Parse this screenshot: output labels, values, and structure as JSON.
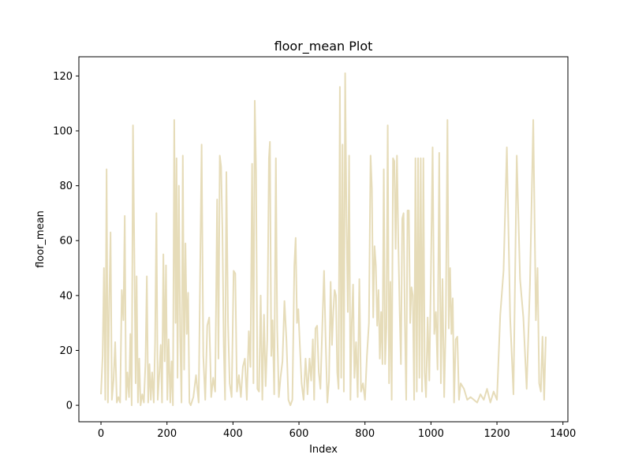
{
  "chart_data": {
    "type": "line",
    "title": "floor_mean Plot",
    "xlabel": "Index",
    "ylabel": "floor_mean",
    "xlim": [
      -67,
      1415
    ],
    "ylim": [
      -6,
      127
    ],
    "xticks": [
      0,
      200,
      400,
      600,
      800,
      1000,
      1200,
      1400
    ],
    "yticks": [
      0,
      20,
      40,
      60,
      80,
      100,
      120
    ],
    "grid": false,
    "legend": "none",
    "series": [
      {
        "color": "#e6dcb9",
        "points": [
          [
            0,
            4
          ],
          [
            5,
            18
          ],
          [
            9,
            50
          ],
          [
            13,
            2
          ],
          [
            17,
            86
          ],
          [
            21,
            1
          ],
          [
            25,
            38
          ],
          [
            29,
            63
          ],
          [
            33,
            2
          ],
          [
            38,
            9
          ],
          [
            43,
            23
          ],
          [
            48,
            1
          ],
          [
            53,
            3
          ],
          [
            58,
            1
          ],
          [
            63,
            42
          ],
          [
            68,
            31
          ],
          [
            72,
            69
          ],
          [
            76,
            2
          ],
          [
            80,
            12
          ],
          [
            85,
            3
          ],
          [
            89,
            26
          ],
          [
            93,
            0
          ],
          [
            97,
            102
          ],
          [
            101,
            56
          ],
          [
            105,
            8
          ],
          [
            108,
            47
          ],
          [
            112,
            1
          ],
          [
            116,
            17
          ],
          [
            120,
            0
          ],
          [
            125,
            4
          ],
          [
            130,
            1
          ],
          [
            135,
            16
          ],
          [
            139,
            47
          ],
          [
            143,
            1
          ],
          [
            147,
            15
          ],
          [
            151,
            2
          ],
          [
            155,
            12
          ],
          [
            160,
            1
          ],
          [
            164,
            23
          ],
          [
            168,
            70
          ],
          [
            172,
            2
          ],
          [
            177,
            12
          ],
          [
            181,
            22
          ],
          [
            185,
            1
          ],
          [
            189,
            55
          ],
          [
            193,
            16
          ],
          [
            197,
            51
          ],
          [
            201,
            2
          ],
          [
            205,
            24
          ],
          [
            210,
            1
          ],
          [
            214,
            16
          ],
          [
            218,
            0
          ],
          [
            222,
            104
          ],
          [
            226,
            30
          ],
          [
            229,
            90
          ],
          [
            232,
            10
          ],
          [
            236,
            80
          ],
          [
            240,
            25
          ],
          [
            244,
            1
          ],
          [
            248,
            91
          ],
          [
            252,
            13
          ],
          [
            256,
            59
          ],
          [
            260,
            26
          ],
          [
            264,
            41
          ],
          [
            268,
            1
          ],
          [
            272,
            0
          ],
          [
            280,
            3
          ],
          [
            288,
            11
          ],
          [
            296,
            1
          ],
          [
            305,
            95
          ],
          [
            310,
            18
          ],
          [
            316,
            2
          ],
          [
            322,
            29
          ],
          [
            328,
            32
          ],
          [
            334,
            3
          ],
          [
            340,
            10
          ],
          [
            346,
            5
          ],
          [
            352,
            75
          ],
          [
            356,
            17
          ],
          [
            360,
            91
          ],
          [
            364,
            87
          ],
          [
            368,
            64
          ],
          [
            372,
            22
          ],
          [
            376,
            2
          ],
          [
            380,
            85
          ],
          [
            385,
            30
          ],
          [
            390,
            8
          ],
          [
            396,
            3
          ],
          [
            402,
            49
          ],
          [
            407,
            48
          ],
          [
            412,
            5
          ],
          [
            418,
            11
          ],
          [
            424,
            3
          ],
          [
            430,
            14
          ],
          [
            436,
            17
          ],
          [
            442,
            2
          ],
          [
            448,
            27
          ],
          [
            453,
            14
          ],
          [
            458,
            88
          ],
          [
            462,
            8
          ],
          [
            466,
            111
          ],
          [
            470,
            85
          ],
          [
            474,
            6
          ],
          [
            479,
            5
          ],
          [
            484,
            40
          ],
          [
            489,
            2
          ],
          [
            494,
            33
          ],
          [
            499,
            7
          ],
          [
            504,
            24
          ],
          [
            509,
            90
          ],
          [
            512,
            96
          ],
          [
            516,
            18
          ],
          [
            520,
            31
          ],
          [
            525,
            4
          ],
          [
            530,
            90
          ],
          [
            534,
            28
          ],
          [
            539,
            3
          ],
          [
            544,
            10
          ],
          [
            550,
            16
          ],
          [
            556,
            38
          ],
          [
            562,
            24
          ],
          [
            568,
            2
          ],
          [
            574,
            0
          ],
          [
            580,
            2
          ],
          [
            586,
            51
          ],
          [
            590,
            61
          ],
          [
            594,
            30
          ],
          [
            598,
            35
          ],
          [
            603,
            21
          ],
          [
            608,
            8
          ],
          [
            614,
            2
          ],
          [
            620,
            17
          ],
          [
            626,
            4
          ],
          [
            632,
            17
          ],
          [
            637,
            9
          ],
          [
            642,
            24
          ],
          [
            646,
            2
          ],
          [
            650,
            28
          ],
          [
            655,
            29
          ],
          [
            660,
            12
          ],
          [
            665,
            6
          ],
          [
            670,
            26
          ],
          [
            676,
            49
          ],
          [
            681,
            23
          ],
          [
            686,
            1
          ],
          [
            691,
            9
          ],
          [
            696,
            45
          ],
          [
            700,
            22
          ],
          [
            704,
            34
          ],
          [
            708,
            42
          ],
          [
            712,
            40
          ],
          [
            716,
            12
          ],
          [
            720,
            6
          ],
          [
            724,
            116
          ],
          [
            728,
            10
          ],
          [
            732,
            95
          ],
          [
            736,
            5
          ],
          [
            740,
            121
          ],
          [
            744,
            68
          ],
          [
            748,
            34
          ],
          [
            752,
            91
          ],
          [
            756,
            2
          ],
          [
            760,
            30
          ],
          [
            764,
            44
          ],
          [
            768,
            10
          ],
          [
            773,
            23
          ],
          [
            778,
            3
          ],
          [
            783,
            46
          ],
          [
            788,
            5
          ],
          [
            794,
            8
          ],
          [
            800,
            2
          ],
          [
            806,
            18
          ],
          [
            812,
            30
          ],
          [
            817,
            91
          ],
          [
            821,
            79
          ],
          [
            825,
            32
          ],
          [
            829,
            58
          ],
          [
            833,
            51
          ],
          [
            837,
            29
          ],
          [
            841,
            42
          ],
          [
            845,
            17
          ],
          [
            849,
            34
          ],
          [
            853,
            15
          ],
          [
            857,
            86
          ],
          [
            861,
            15
          ],
          [
            865,
            28
          ],
          [
            869,
            102
          ],
          [
            873,
            8
          ],
          [
            877,
            45
          ],
          [
            881,
            2
          ],
          [
            885,
            90
          ],
          [
            889,
            89
          ],
          [
            893,
            57
          ],
          [
            897,
            91
          ],
          [
            901,
            60
          ],
          [
            905,
            35
          ],
          [
            909,
            15
          ],
          [
            913,
            68
          ],
          [
            917,
            70
          ],
          [
            921,
            30
          ],
          [
            925,
            2
          ],
          [
            929,
            71
          ],
          [
            933,
            71
          ],
          [
            937,
            30
          ],
          [
            941,
            43
          ],
          [
            945,
            40
          ],
          [
            949,
            2
          ],
          [
            953,
            90
          ],
          [
            957,
            5
          ],
          [
            961,
            90
          ],
          [
            965,
            10
          ],
          [
            969,
            90
          ],
          [
            973,
            5
          ],
          [
            977,
            90
          ],
          [
            981,
            12
          ],
          [
            985,
            3
          ],
          [
            990,
            32
          ],
          [
            995,
            9
          ],
          [
            1000,
            49
          ],
          [
            1005,
            94
          ],
          [
            1010,
            26
          ],
          [
            1015,
            34
          ],
          [
            1020,
            13
          ],
          [
            1025,
            92
          ],
          [
            1030,
            8
          ],
          [
            1035,
            46
          ],
          [
            1040,
            3
          ],
          [
            1045,
            31
          ],
          [
            1050,
            104
          ],
          [
            1054,
            28
          ],
          [
            1058,
            50
          ],
          [
            1062,
            26
          ],
          [
            1066,
            39
          ],
          [
            1070,
            1
          ],
          [
            1075,
            24
          ],
          [
            1080,
            25
          ],
          [
            1085,
            2
          ],
          [
            1090,
            8
          ],
          [
            1100,
            6
          ],
          [
            1110,
            2
          ],
          [
            1120,
            3
          ],
          [
            1130,
            2
          ],
          [
            1140,
            1
          ],
          [
            1150,
            4
          ],
          [
            1160,
            2
          ],
          [
            1170,
            6
          ],
          [
            1180,
            1
          ],
          [
            1190,
            5
          ],
          [
            1200,
            2
          ],
          [
            1210,
            33
          ],
          [
            1220,
            49
          ],
          [
            1230,
            94
          ],
          [
            1240,
            32
          ],
          [
            1250,
            4
          ],
          [
            1260,
            91
          ],
          [
            1270,
            46
          ],
          [
            1280,
            32
          ],
          [
            1290,
            6
          ],
          [
            1300,
            44
          ],
          [
            1310,
            104
          ],
          [
            1318,
            31
          ],
          [
            1323,
            50
          ],
          [
            1328,
            8
          ],
          [
            1333,
            5
          ],
          [
            1338,
            25
          ],
          [
            1343,
            2
          ],
          [
            1348,
            25
          ]
        ]
      }
    ]
  }
}
